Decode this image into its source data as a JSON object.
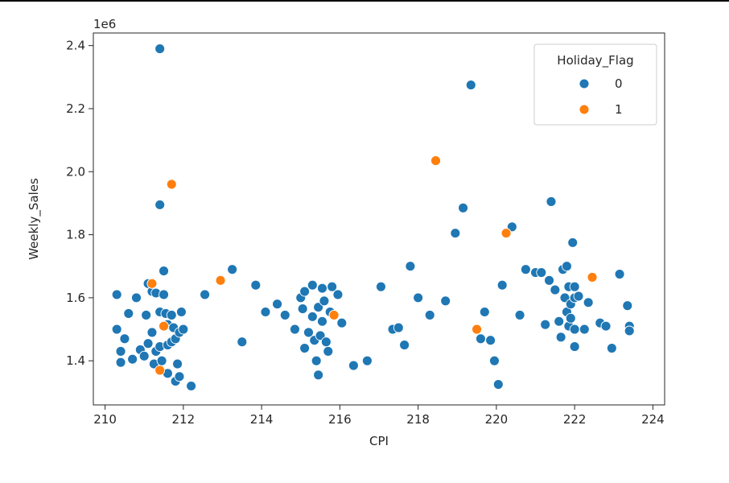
{
  "chart_data": {
    "type": "scatter",
    "xlabel": "CPI",
    "ylabel": "Weekly_Sales",
    "offset_label": "1e6",
    "xlim": [
      209.7,
      224.3
    ],
    "ylim": [
      1.26,
      2.44
    ],
    "x_ticks": [
      210,
      212,
      214,
      216,
      218,
      220,
      222,
      224
    ],
    "y_ticks": [
      1.4,
      1.6,
      1.8,
      2.0,
      2.2,
      2.4
    ],
    "grid": false,
    "legend": {
      "title": "Holiday_Flag",
      "position": "top-right",
      "entries": [
        {
          "label": "0",
          "color": "#1f77b4"
        },
        {
          "label": "1",
          "color": "#ff7f0e"
        }
      ]
    },
    "series": [
      {
        "name": "0",
        "color": "#1f77b4",
        "points": [
          [
            211.4,
            2.39
          ],
          [
            211.4,
            1.895
          ],
          [
            210.3,
            1.61
          ],
          [
            210.3,
            1.5
          ],
          [
            210.4,
            1.43
          ],
          [
            210.4,
            1.395
          ],
          [
            210.5,
            1.47
          ],
          [
            210.6,
            1.55
          ],
          [
            210.7,
            1.405
          ],
          [
            210.8,
            1.6
          ],
          [
            210.9,
            1.435
          ],
          [
            211.0,
            1.415
          ],
          [
            211.05,
            1.545
          ],
          [
            211.1,
            1.645
          ],
          [
            211.1,
            1.455
          ],
          [
            211.2,
            1.62
          ],
          [
            211.2,
            1.49
          ],
          [
            211.25,
            1.39
          ],
          [
            211.3,
            1.615
          ],
          [
            211.3,
            1.43
          ],
          [
            211.4,
            1.555
          ],
          [
            211.4,
            1.445
          ],
          [
            211.45,
            1.4
          ],
          [
            211.5,
            1.685
          ],
          [
            211.5,
            1.61
          ],
          [
            211.55,
            1.55
          ],
          [
            211.6,
            1.515
          ],
          [
            211.6,
            1.45
          ],
          [
            211.6,
            1.36
          ],
          [
            211.7,
            1.545
          ],
          [
            211.7,
            1.46
          ],
          [
            211.75,
            1.505
          ],
          [
            211.8,
            1.47
          ],
          [
            211.8,
            1.335
          ],
          [
            211.85,
            1.39
          ],
          [
            211.9,
            1.35
          ],
          [
            211.9,
            1.49
          ],
          [
            211.95,
            1.555
          ],
          [
            212.0,
            1.5
          ],
          [
            212.2,
            1.32
          ],
          [
            212.55,
            1.61
          ],
          [
            213.25,
            1.69
          ],
          [
            213.5,
            1.46
          ],
          [
            213.85,
            1.64
          ],
          [
            214.1,
            1.555
          ],
          [
            214.4,
            1.58
          ],
          [
            214.6,
            1.545
          ],
          [
            214.85,
            1.5
          ],
          [
            215.0,
            1.6
          ],
          [
            215.05,
            1.565
          ],
          [
            215.1,
            1.44
          ],
          [
            215.1,
            1.62
          ],
          [
            215.2,
            1.49
          ],
          [
            215.3,
            1.64
          ],
          [
            215.3,
            1.54
          ],
          [
            215.35,
            1.465
          ],
          [
            215.4,
            1.4
          ],
          [
            215.45,
            1.57
          ],
          [
            215.45,
            1.355
          ],
          [
            215.5,
            1.48
          ],
          [
            215.55,
            1.63
          ],
          [
            215.55,
            1.525
          ],
          [
            215.6,
            1.59
          ],
          [
            215.65,
            1.46
          ],
          [
            215.7,
            1.43
          ],
          [
            215.75,
            1.555
          ],
          [
            215.8,
            1.635
          ],
          [
            215.85,
            1.545
          ],
          [
            215.95,
            1.61
          ],
          [
            216.05,
            1.52
          ],
          [
            216.35,
            1.385
          ],
          [
            216.7,
            1.4
          ],
          [
            217.05,
            1.635
          ],
          [
            217.35,
            1.5
          ],
          [
            217.5,
            1.505
          ],
          [
            217.65,
            1.45
          ],
          [
            217.8,
            1.7
          ],
          [
            218.0,
            1.6
          ],
          [
            218.3,
            1.545
          ],
          [
            218.7,
            1.59
          ],
          [
            218.95,
            1.805
          ],
          [
            219.15,
            1.885
          ],
          [
            219.35,
            2.275
          ],
          [
            219.6,
            1.47
          ],
          [
            219.7,
            1.555
          ],
          [
            219.85,
            1.465
          ],
          [
            219.95,
            1.4
          ],
          [
            220.05,
            1.325
          ],
          [
            220.15,
            1.64
          ],
          [
            220.4,
            1.825
          ],
          [
            220.6,
            1.545
          ],
          [
            220.75,
            1.69
          ],
          [
            221.0,
            1.68
          ],
          [
            221.15,
            1.68
          ],
          [
            221.25,
            1.515
          ],
          [
            221.35,
            1.655
          ],
          [
            221.4,
            1.905
          ],
          [
            221.5,
            1.625
          ],
          [
            221.6,
            1.525
          ],
          [
            221.65,
            1.475
          ],
          [
            221.7,
            1.69
          ],
          [
            221.75,
            1.6
          ],
          [
            221.8,
            1.7
          ],
          [
            221.8,
            1.555
          ],
          [
            221.85,
            1.635
          ],
          [
            221.85,
            1.51
          ],
          [
            221.9,
            1.58
          ],
          [
            221.9,
            1.535
          ],
          [
            221.95,
            1.775
          ],
          [
            222.0,
            1.635
          ],
          [
            222.0,
            1.6
          ],
          [
            222.0,
            1.5
          ],
          [
            222.0,
            1.445
          ],
          [
            222.1,
            1.605
          ],
          [
            222.25,
            1.5
          ],
          [
            222.35,
            1.585
          ],
          [
            222.65,
            1.52
          ],
          [
            222.8,
            1.51
          ],
          [
            222.95,
            1.44
          ],
          [
            223.15,
            1.675
          ],
          [
            223.35,
            1.575
          ],
          [
            223.4,
            1.51
          ],
          [
            223.4,
            1.495
          ]
        ]
      },
      {
        "name": "1",
        "color": "#ff7f0e",
        "points": [
          [
            211.2,
            1.645
          ],
          [
            211.5,
            1.51
          ],
          [
            211.4,
            1.37
          ],
          [
            211.7,
            1.96
          ],
          [
            212.95,
            1.655
          ],
          [
            215.85,
            1.545
          ],
          [
            218.45,
            2.035
          ],
          [
            219.5,
            1.5
          ],
          [
            220.25,
            1.805
          ],
          [
            222.45,
            1.665
          ]
        ]
      }
    ]
  }
}
